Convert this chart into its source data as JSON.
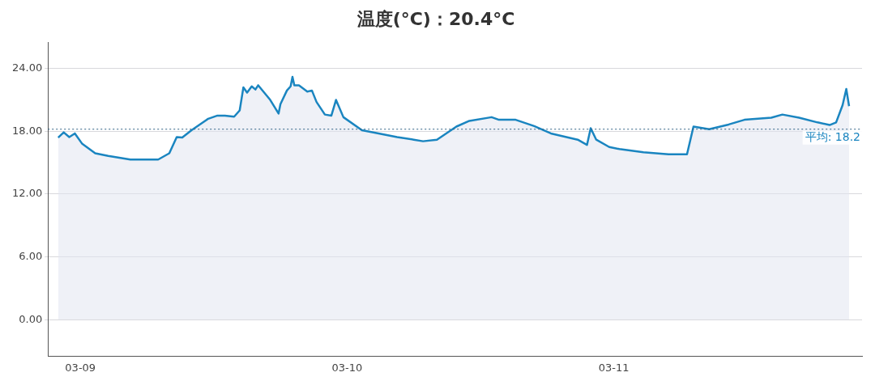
{
  "chart_data": {
    "type": "area",
    "title": "温度(°C)：20.4°C",
    "x": [
      "--03-08T22:00",
      "--03-08T22:30",
      "--03-08T23:00",
      "--03-08T23:30",
      "--03-09T00:10",
      "--03-09T01:20",
      "--03-09T02:30",
      "--03-09T04:30",
      "--03-09T07:00",
      "--03-09T08:00",
      "--03-09T08:40",
      "--03-09T09:10",
      "--03-09T10:00",
      "--03-09T11:30",
      "--03-09T12:20",
      "--03-09T13:00",
      "--03-09T13:50",
      "--03-09T14:20",
      "--03-09T14:40",
      "--03-09T15:00",
      "--03-09T15:25",
      "--03-09T15:45",
      "--03-09T16:00",
      "--03-09T17:05",
      "--03-09T17:50",
      "--03-09T18:00",
      "--03-09T18:35",
      "--03-09T18:55",
      "--03-09T19:05",
      "--03-09T19:15",
      "--03-09T19:40",
      "--03-09T20:25",
      "--03-09T20:50",
      "--03-09T21:15",
      "--03-09T22:00",
      "--03-09T22:35",
      "--03-09T23:00",
      "--03-09T23:40",
      "--03-10T01:20",
      "--03-10T02:50",
      "--03-10T04:30",
      "--03-10T06:00",
      "--03-10T06:50",
      "--03-10T08:05",
      "--03-10T09:50",
      "--03-10T11:00",
      "--03-10T13:00",
      "--03-10T13:40",
      "--03-10T15:10",
      "--03-10T16:50",
      "--03-10T18:20",
      "--03-10T20:45",
      "--03-10T21:35",
      "--03-10T21:55",
      "--03-10T22:25",
      "--03-10T23:35",
      "--03-11T00:30",
      "--03-11T02:40",
      "--03-11T04:55",
      "--03-11T06:35",
      "--03-11T07:10",
      "--03-11T08:35",
      "--03-11T10:20",
      "--03-11T11:45",
      "--03-11T14:10",
      "--03-11T15:10",
      "--03-11T16:40",
      "--03-11T18:20",
      "--03-11T19:25",
      "--03-11T20:00",
      "--03-11T20:35",
      "--03-11T20:55",
      "--03-11T21:10"
    ],
    "series": [
      {
        "color": "#1a85c0",
        "values": [
          17.4,
          17.9,
          17.45,
          17.8,
          16.8,
          15.9,
          15.65,
          15.3,
          15.3,
          15.9,
          17.45,
          17.4,
          18.1,
          19.2,
          19.5,
          19.5,
          19.4,
          20.0,
          22.2,
          21.7,
          22.3,
          22.0,
          22.4,
          21.0,
          19.7,
          20.6,
          21.9,
          22.3,
          23.2,
          22.4,
          22.4,
          21.8,
          21.9,
          20.8,
          19.6,
          19.5,
          21.0,
          19.35,
          18.1,
          17.8,
          17.45,
          17.2,
          17.05,
          17.2,
          18.45,
          19.0,
          19.35,
          19.1,
          19.1,
          18.5,
          17.8,
          17.2,
          16.7,
          18.3,
          17.2,
          16.5,
          16.3,
          16.0,
          15.8,
          15.8,
          18.45,
          18.2,
          18.65,
          19.1,
          19.3,
          19.6,
          19.3,
          18.85,
          18.6,
          18.85,
          20.5,
          22.05,
          20.4
        ]
      }
    ],
    "xlim": [
      "--03-08T21:05",
      "--03-11T22:20"
    ],
    "xticks": [
      {
        "value": "--03-09",
        "label": "03-09"
      },
      {
        "value": "--03-10",
        "label": "03-10"
      },
      {
        "value": "--03-11",
        "label": "03-11"
      }
    ],
    "ylim": [
      -3.5,
      26.5
    ],
    "yticks": [
      {
        "value": 0,
        "label": "0.00"
      },
      {
        "value": 6,
        "label": "6.00"
      },
      {
        "value": 12,
        "label": "12.00"
      },
      {
        "value": 18,
        "label": "18.00"
      },
      {
        "value": 24,
        "label": "24.00"
      }
    ],
    "ref_lines": [
      {
        "axis": "y",
        "value": 18.2,
        "label": "平均: 18.2",
        "color": "#2a5f82",
        "line_style": "dotted"
      }
    ],
    "grid": "y",
    "legend": false,
    "marker": "none",
    "line_style": "solid"
  }
}
